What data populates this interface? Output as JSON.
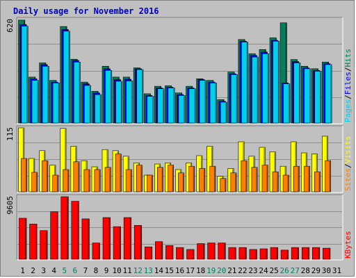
{
  "title": "Daily usage for November 2016",
  "colors": {
    "hits": "#00805c",
    "files": "#0000ff",
    "pages": "#00d0f0",
    "visits": "#ffff00",
    "sites": "#ff8000",
    "kbytes": "#ff0000",
    "weekend_label": "#008060",
    "weekday_label": "#000000",
    "title": "#0000c0"
  },
  "legend": {
    "top": [
      {
        "text": "Pages",
        "color": "#00d0f0"
      },
      {
        "text": "/",
        "color": "#000000"
      },
      {
        "text": "Files",
        "color": "#0000ff"
      },
      {
        "text": "/",
        "color": "#000000"
      },
      {
        "text": "Hits",
        "color": "#00805c"
      }
    ],
    "mid": [
      {
        "text": "Sites",
        "color": "#ff8000"
      },
      {
        "text": "/",
        "color": "#000000"
      },
      {
        "text": "Visits",
        "color": "#ffff00"
      }
    ],
    "bottom": [
      {
        "text": "KBytes",
        "color": "#ff0000"
      }
    ]
  },
  "chart_data": [
    {
      "type": "bar",
      "panel": "hits",
      "ymax_label": "620",
      "ylim": [
        0,
        620
      ],
      "categories": [
        "1",
        "2",
        "3",
        "4",
        "5",
        "6",
        "7",
        "8",
        "9",
        "10",
        "11",
        "12",
        "13",
        "14",
        "15",
        "16",
        "17",
        "18",
        "19",
        "20",
        "21",
        "22",
        "23",
        "24",
        "25",
        "26",
        "27",
        "28",
        "29",
        "30",
        "31"
      ],
      "weekend": [
        "5",
        "6",
        "12",
        "13",
        "19",
        "20",
        "26",
        "27"
      ],
      "series": [
        {
          "name": "Hits",
          "values": [
            616,
            275,
            360,
            255,
            578,
            382,
            245,
            190,
            340,
            275,
            275,
            330,
            175,
            220,
            223,
            180,
            220,
            265,
            255,
            140,
            305,
            500,
            415,
            440,
            510,
            600,
            380,
            340,
            325,
            365,
            0
          ]
        },
        {
          "name": "Files",
          "values": [
            590,
            265,
            350,
            245,
            560,
            375,
            235,
            180,
            325,
            260,
            262,
            325,
            165,
            210,
            215,
            170,
            210,
            260,
            245,
            130,
            295,
            490,
            405,
            425,
            495,
            240,
            368,
            330,
            315,
            355,
            0
          ]
        },
        {
          "name": "Pages",
          "values": [
            580,
            255,
            340,
            240,
            550,
            365,
            225,
            170,
            315,
            250,
            252,
            320,
            160,
            205,
            210,
            165,
            205,
            255,
            240,
            125,
            290,
            485,
            395,
            415,
            490,
            235,
            360,
            325,
            310,
            350,
            0
          ]
        }
      ]
    },
    {
      "type": "bar",
      "panel": "visits",
      "ymax_label": "115",
      "ylim": [
        0,
        115
      ],
      "categories": [
        "1",
        "2",
        "3",
        "4",
        "5",
        "6",
        "7",
        "8",
        "9",
        "10",
        "11",
        "12",
        "13",
        "14",
        "15",
        "16",
        "17",
        "18",
        "19",
        "20",
        "21",
        "22",
        "23",
        "24",
        "25",
        "26",
        "27",
        "28",
        "29",
        "30",
        "31"
      ],
      "series": [
        {
          "name": "Visits",
          "values": [
            115,
            60,
            74,
            48,
            114,
            82,
            56,
            45,
            76,
            74,
            64,
            52,
            30,
            50,
            52,
            40,
            52,
            65,
            82,
            28,
            42,
            90,
            64,
            80,
            72,
            46,
            90,
            70,
            68,
            100,
            0
          ]
        },
        {
          "name": "Sites",
          "values": [
            60,
            35,
            56,
            30,
            40,
            54,
            40,
            40,
            44,
            68,
            40,
            48,
            30,
            44,
            48,
            34,
            46,
            42,
            46,
            24,
            34,
            56,
            44,
            48,
            36,
            30,
            46,
            46,
            36,
            56,
            0
          ]
        }
      ]
    },
    {
      "type": "bar",
      "panel": "kbytes",
      "ymax_label": "9605",
      "ylim": [
        0,
        9605
      ],
      "categories": [
        "1",
        "2",
        "3",
        "4",
        "5",
        "6",
        "7",
        "8",
        "9",
        "10",
        "11",
        "12",
        "13",
        "14",
        "15",
        "16",
        "17",
        "18",
        "19",
        "20",
        "21",
        "22",
        "23",
        "24",
        "25",
        "26",
        "27",
        "28",
        "29",
        "30",
        "31"
      ],
      "series": [
        {
          "name": "KBytes",
          "values": [
            6300,
            5400,
            4400,
            7300,
            9605,
            8900,
            6200,
            2500,
            6400,
            5000,
            6400,
            5200,
            1900,
            2700,
            2100,
            1800,
            1500,
            2400,
            2500,
            2500,
            1800,
            1800,
            1500,
            1600,
            1800,
            1400,
            1800,
            1800,
            1800,
            1700,
            0
          ]
        }
      ]
    }
  ]
}
